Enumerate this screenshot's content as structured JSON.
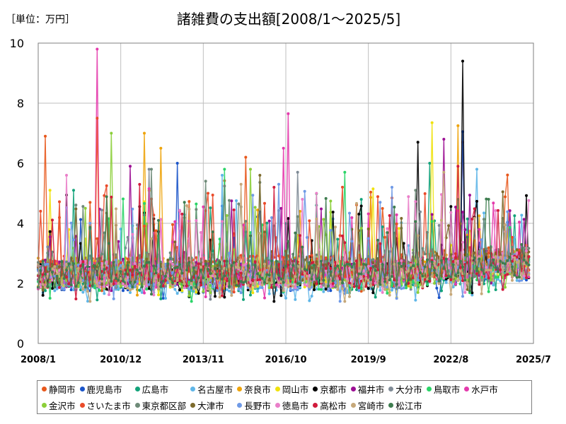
{
  "page": {
    "unit_label": "［単位：万円］"
  },
  "chart_data": {
    "type": "line",
    "title": "諸雑費の支出額[2008/1～2025/5]",
    "xlabel": "",
    "ylabel": "",
    "ylim": [
      0,
      10
    ],
    "yticks": [
      "0",
      "2",
      "4",
      "6",
      "8",
      "10"
    ],
    "xticks": [
      "2008/1",
      "2010/12",
      "2013/11",
      "2016/10",
      "2019/9",
      "2022/8",
      "2025/7"
    ],
    "x_start": "2008/1",
    "x_end": "2025/7",
    "months_total": 210,
    "months_with_data": 209,
    "grid": true,
    "legend_position": "bottom",
    "series": [
      {
        "name": "静岡市",
        "color": "#e8581c",
        "baseline": 2.5,
        "peaks": [
          [
            3,
            6.9
          ],
          [
            88,
            6.2
          ],
          [
            180,
            6.7
          ]
        ]
      },
      {
        "name": "鹿児島市",
        "color": "#1a54c9",
        "baseline": 2.2,
        "peaks": [
          [
            59,
            6.0
          ],
          [
            180,
            7.05
          ]
        ]
      },
      {
        "name": "広島市",
        "color": "#13a37a",
        "baseline": 2.2,
        "peaks": [
          [
            15,
            5.1
          ],
          [
            166,
            6.0
          ]
        ]
      },
      {
        "name": "名古屋市",
        "color": "#5fb6e8",
        "baseline": 2.1,
        "peaks": [
          [
            78,
            5.6
          ],
          [
            186,
            5.8
          ]
        ]
      },
      {
        "name": "奈良市",
        "color": "#eea40c",
        "baseline": 2.4,
        "peaks": [
          [
            45,
            7.0
          ],
          [
            52,
            6.5
          ],
          [
            178,
            7.25
          ]
        ]
      },
      {
        "name": "岡山市",
        "color": "#f0e20d",
        "baseline": 2.3,
        "peaks": [
          [
            167,
            7.35
          ]
        ]
      },
      {
        "name": "京都市",
        "color": "#000000",
        "baseline": 2.2,
        "peaks": [
          [
            161,
            6.7
          ],
          [
            180,
            9.4
          ]
        ]
      },
      {
        "name": "福井市",
        "color": "#9c0f94",
        "baseline": 2.4,
        "peaks": [
          [
            39,
            5.9
          ],
          [
            172,
            6.8
          ]
        ]
      },
      {
        "name": "大分市",
        "color": "#7f8b96",
        "baseline": 2.3,
        "peaks": [
          [
            47,
            5.8
          ],
          [
            110,
            5.7
          ]
        ]
      },
      {
        "name": "鳥取市",
        "color": "#2bd468",
        "baseline": 2.2,
        "peaks": [
          [
            79,
            5.8
          ],
          [
            130,
            5.7
          ]
        ]
      },
      {
        "name": "水戸市",
        "color": "#e43aac",
        "baseline": 2.3,
        "peaks": [
          [
            25,
            9.8
          ],
          [
            106,
            7.65
          ],
          [
            104,
            6.5
          ]
        ]
      },
      {
        "name": "金沢市",
        "color": "#8ccf3a",
        "baseline": 2.3,
        "peaks": [
          [
            31,
            7.0
          ],
          [
            90,
            5.8
          ]
        ]
      },
      {
        "name": "さいたま市",
        "color": "#ea4b2a",
        "baseline": 2.5,
        "peaks": [
          [
            25,
            7.5
          ],
          [
            72,
            5.0
          ]
        ]
      },
      {
        "name": "東京都区部",
        "color": "#6e8a78",
        "baseline": 2.6,
        "peaks": [
          [
            48,
            5.8
          ],
          [
            160,
            5.1
          ]
        ]
      },
      {
        "name": "大津市",
        "color": "#7d6a2c",
        "baseline": 2.4,
        "peaks": [
          [
            94,
            5.6
          ],
          [
            197,
            5.05
          ]
        ]
      },
      {
        "name": "長野市",
        "color": "#6f9ae6",
        "baseline": 2.2,
        "peaks": [
          [
            102,
            5.3
          ],
          [
            150,
            5.2
          ]
        ]
      },
      {
        "name": "徳島市",
        "color": "#ea7fc9",
        "baseline": 2.3,
        "peaks": [
          [
            12,
            5.6
          ],
          [
            118,
            5.0
          ]
        ]
      },
      {
        "name": "高松市",
        "color": "#d11b3c",
        "baseline": 2.3,
        "peaks": [
          [
            178,
            5.9
          ],
          [
            100,
            5.2
          ]
        ]
      },
      {
        "name": "宮崎市",
        "color": "#c6a87a",
        "baseline": 2.2,
        "peaks": [
          [
            86,
            5.3
          ],
          [
            172,
            5.7
          ]
        ]
      },
      {
        "name": "松江市",
        "color": "#3e7d4f",
        "baseline": 2.3,
        "peaks": [
          [
            191,
            4.8
          ],
          [
            62,
            4.7
          ]
        ]
      }
    ]
  }
}
